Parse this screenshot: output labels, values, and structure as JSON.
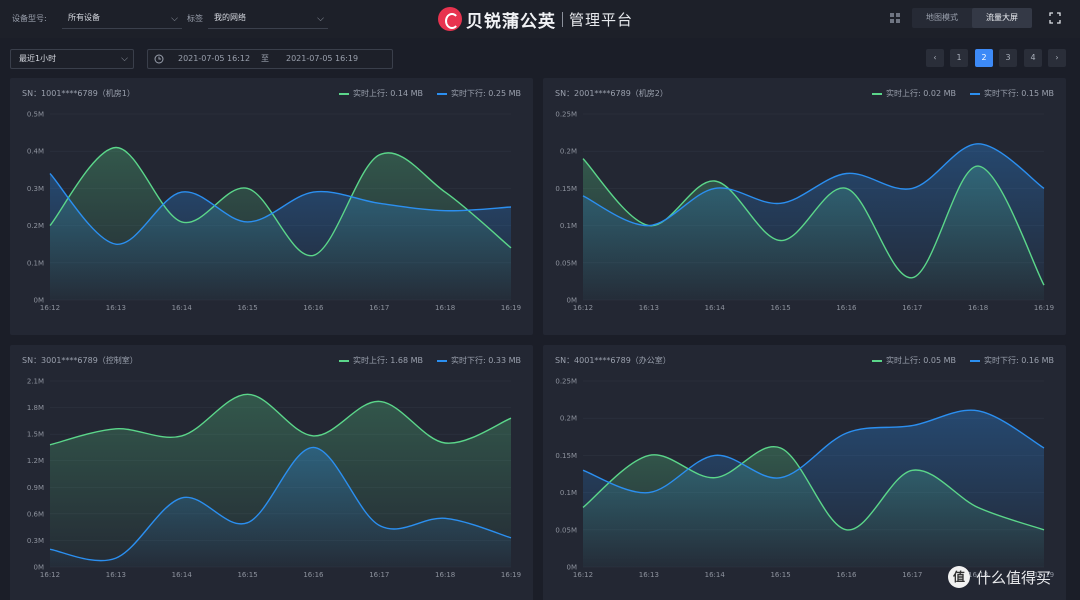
{
  "header": {
    "device_type_label": "设备型号:",
    "device_type_value": "所有设备",
    "tag_label": "标签",
    "tag_value": "我的网络",
    "brand": "贝锐蒲公英",
    "subtitle": "管理平台",
    "mode_map": "地图模式",
    "mode_flow": "流量大屏"
  },
  "toolbar": {
    "range": "最近1小时",
    "start": "2021-07-05 16:12",
    "to": "至",
    "end": "2021-07-05 16:19"
  },
  "pager": {
    "prev": "‹",
    "next": "›",
    "pages": [
      "1",
      "2",
      "3",
      "4"
    ],
    "current": "2"
  },
  "legend": {
    "up": "实时上行",
    "down": "实时下行"
  },
  "colors": {
    "up": "#5bd68a",
    "down": "#2b8ff0",
    "accent": "#3d8af7",
    "brand": "#e8334f"
  },
  "watermark": {
    "glyph": "值",
    "text": "什么值得买"
  },
  "panels": [
    {
      "title": "SN：1001****6789（机房1）",
      "up_value": "0.14 MB",
      "down_value": "0.25 MB"
    },
    {
      "title": "SN：2001****6789（机房2）",
      "up_value": "0.02 MB",
      "down_value": "0.15 MB"
    },
    {
      "title": "SN：3001****6789（控制室）",
      "up_value": "1.68 MB",
      "down_value": "0.33 MB"
    },
    {
      "title": "SN：4001****6789（办公室）",
      "up_value": "0.05 MB",
      "down_value": "0.16 MB"
    }
  ],
  "chart_data": [
    {
      "type": "area",
      "x": [
        "16:12",
        "16:13",
        "16:14",
        "16:15",
        "16:16",
        "16:17",
        "16:18",
        "16:19"
      ],
      "y_ticks": [
        "0M",
        "0.1M",
        "0.2M",
        "0.3M",
        "0.4M",
        "0.5M"
      ],
      "ylim": [
        0,
        0.5
      ],
      "series": [
        {
          "name": "实时上行",
          "values": [
            0.2,
            0.41,
            0.21,
            0.3,
            0.12,
            0.39,
            0.29,
            0.14
          ]
        },
        {
          "name": "实时下行",
          "values": [
            0.34,
            0.15,
            0.29,
            0.21,
            0.29,
            0.26,
            0.24,
            0.25
          ]
        }
      ]
    },
    {
      "type": "area",
      "x": [
        "16:12",
        "16:13",
        "16:14",
        "16:15",
        "16:16",
        "16:17",
        "16:18",
        "16:19"
      ],
      "y_ticks": [
        "0M",
        "0.05M",
        "0.1M",
        "0.15M",
        "0.2M",
        "0.25M"
      ],
      "ylim": [
        0,
        0.25
      ],
      "series": [
        {
          "name": "实时上行",
          "values": [
            0.19,
            0.1,
            0.16,
            0.08,
            0.15,
            0.03,
            0.18,
            0.02
          ]
        },
        {
          "name": "实时下行",
          "values": [
            0.14,
            0.1,
            0.15,
            0.13,
            0.17,
            0.15,
            0.21,
            0.15
          ]
        }
      ]
    },
    {
      "type": "area",
      "x": [
        "16:12",
        "16:13",
        "16:14",
        "16:15",
        "16:16",
        "16:17",
        "16:18",
        "16:19"
      ],
      "y_ticks": [
        "0M",
        "0.3M",
        "0.6M",
        "0.9M",
        "1.2M",
        "1.5M",
        "1.8M",
        "2.1M"
      ],
      "ylim": [
        0,
        2.1
      ],
      "series": [
        {
          "name": "实时上行",
          "values": [
            1.38,
            1.56,
            1.48,
            1.95,
            1.48,
            1.87,
            1.4,
            1.68
          ]
        },
        {
          "name": "实时下行",
          "values": [
            0.2,
            0.1,
            0.78,
            0.5,
            1.35,
            0.47,
            0.55,
            0.33
          ]
        }
      ]
    },
    {
      "type": "area",
      "x": [
        "16:12",
        "16:13",
        "16:14",
        "16:15",
        "16:16",
        "16:17",
        "16:18",
        "16:19"
      ],
      "y_ticks": [
        "0M",
        "0.05M",
        "0.1M",
        "0.15M",
        "0.2M",
        "0.25M"
      ],
      "ylim": [
        0,
        0.25
      ],
      "series": [
        {
          "name": "实时上行",
          "values": [
            0.08,
            0.15,
            0.12,
            0.16,
            0.05,
            0.13,
            0.08,
            0.05
          ]
        },
        {
          "name": "实时下行",
          "values": [
            0.13,
            0.1,
            0.15,
            0.12,
            0.18,
            0.19,
            0.21,
            0.16
          ]
        }
      ]
    }
  ]
}
